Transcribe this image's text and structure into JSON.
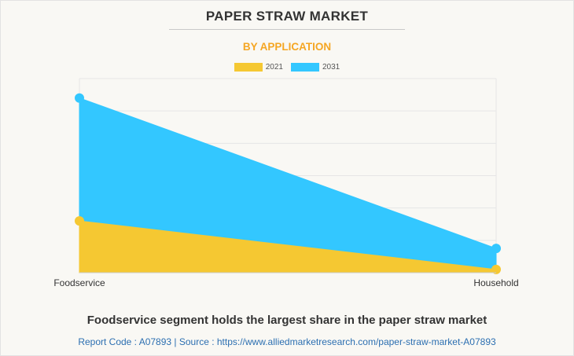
{
  "title": "PAPER STRAW MARKET",
  "subtitle": "BY APPLICATION",
  "caption": "Foodservice segment holds the largest share in the paper straw market",
  "source_line": "Report Code : A07893  |  Source : https://www.alliedmarketresearch.com/paper-straw-market-A07893",
  "colors": {
    "2021": "#f5c832",
    "2031": "#33c7ff",
    "grid": "#e6e6e6",
    "title_accent": "#f5a623"
  },
  "chart_data": {
    "type": "area",
    "categories": [
      "Foodservice",
      "Household"
    ],
    "series": [
      {
        "name": "2021",
        "values": [
          16,
          1
        ]
      },
      {
        "name": "2031",
        "values": [
          54,
          7.5
        ]
      }
    ],
    "ylim": [
      0,
      60
    ],
    "grid": true,
    "legend_position": "top-center"
  }
}
